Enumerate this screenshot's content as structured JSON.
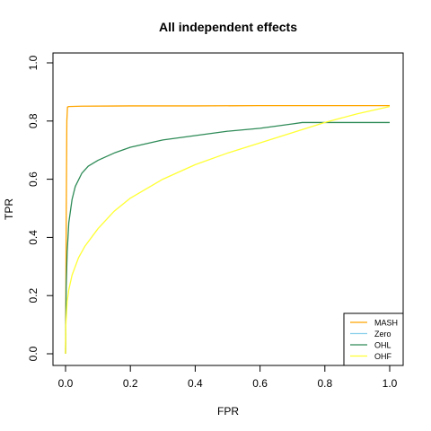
{
  "chart_data": {
    "type": "line",
    "title": "All independent effects",
    "xlabel": "FPR",
    "ylabel": "TPR",
    "xlim": [
      0,
      1
    ],
    "ylim": [
      0,
      1
    ],
    "xticks": [
      0.0,
      0.2,
      0.4,
      0.6,
      0.8,
      1.0
    ],
    "xtick_labels": [
      "0.0",
      "0.2",
      "0.4",
      "0.6",
      "0.8",
      "1.0"
    ],
    "yticks": [
      0.0,
      0.2,
      0.4,
      0.6,
      0.8,
      1.0
    ],
    "ytick_labels": [
      "0.0",
      "0.2",
      "0.4",
      "0.6",
      "0.8",
      "1.0"
    ],
    "grid": false,
    "legend_position": "bottom-right",
    "series": [
      {
        "name": "MASH",
        "color": "#FFA500",
        "x": [
          0.0,
          0.002,
          0.004,
          0.006,
          0.01,
          0.05,
          0.2,
          0.4,
          0.6,
          0.8,
          1.0
        ],
        "y": [
          0.0,
          0.45,
          0.8,
          0.848,
          0.85,
          0.851,
          0.852,
          0.852,
          0.853,
          0.853,
          0.853
        ]
      },
      {
        "name": "Zero",
        "color": "#87CEEB",
        "x": [],
        "y": []
      },
      {
        "name": "OHL",
        "color": "#2E8B57",
        "x": [
          0.0,
          0.002,
          0.005,
          0.01,
          0.02,
          0.03,
          0.05,
          0.07,
          0.1,
          0.15,
          0.2,
          0.3,
          0.4,
          0.5,
          0.6,
          0.7,
          0.73,
          0.8,
          0.9,
          1.0
        ],
        "y": [
          0.0,
          0.23,
          0.35,
          0.45,
          0.53,
          0.575,
          0.62,
          0.645,
          0.665,
          0.69,
          0.71,
          0.735,
          0.75,
          0.765,
          0.775,
          0.79,
          0.795,
          0.795,
          0.795,
          0.795
        ]
      },
      {
        "name": "OHF",
        "color": "#FFFF33",
        "x": [
          0.0,
          0.001,
          0.005,
          0.01,
          0.02,
          0.04,
          0.06,
          0.1,
          0.15,
          0.2,
          0.3,
          0.4,
          0.5,
          0.6,
          0.7,
          0.8,
          0.9,
          1.0
        ],
        "y": [
          0.0,
          0.1,
          0.18,
          0.22,
          0.27,
          0.33,
          0.37,
          0.43,
          0.49,
          0.535,
          0.6,
          0.65,
          0.69,
          0.725,
          0.76,
          0.795,
          0.825,
          0.85
        ]
      }
    ]
  }
}
